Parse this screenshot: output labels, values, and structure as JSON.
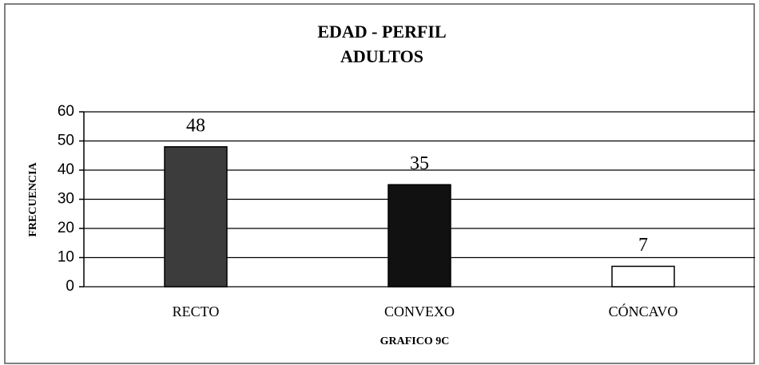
{
  "chart_data": {
    "type": "bar",
    "title": "EDAD - PERFIL",
    "subtitle": "ADULTOS",
    "categories": [
      "RECTO",
      "CONVEXO",
      "CÓNCAVO"
    ],
    "values": [
      48,
      35,
      7
    ],
    "colors": [
      "#3c3c3c",
      "#111111",
      "#ffffff"
    ],
    "ylabel": "FRECUENCIA",
    "xlabel": "GRAFICO 9C",
    "ylim": [
      0,
      60
    ],
    "yticks": [
      0,
      10,
      20,
      30,
      40,
      50,
      60
    ],
    "grid": true
  }
}
